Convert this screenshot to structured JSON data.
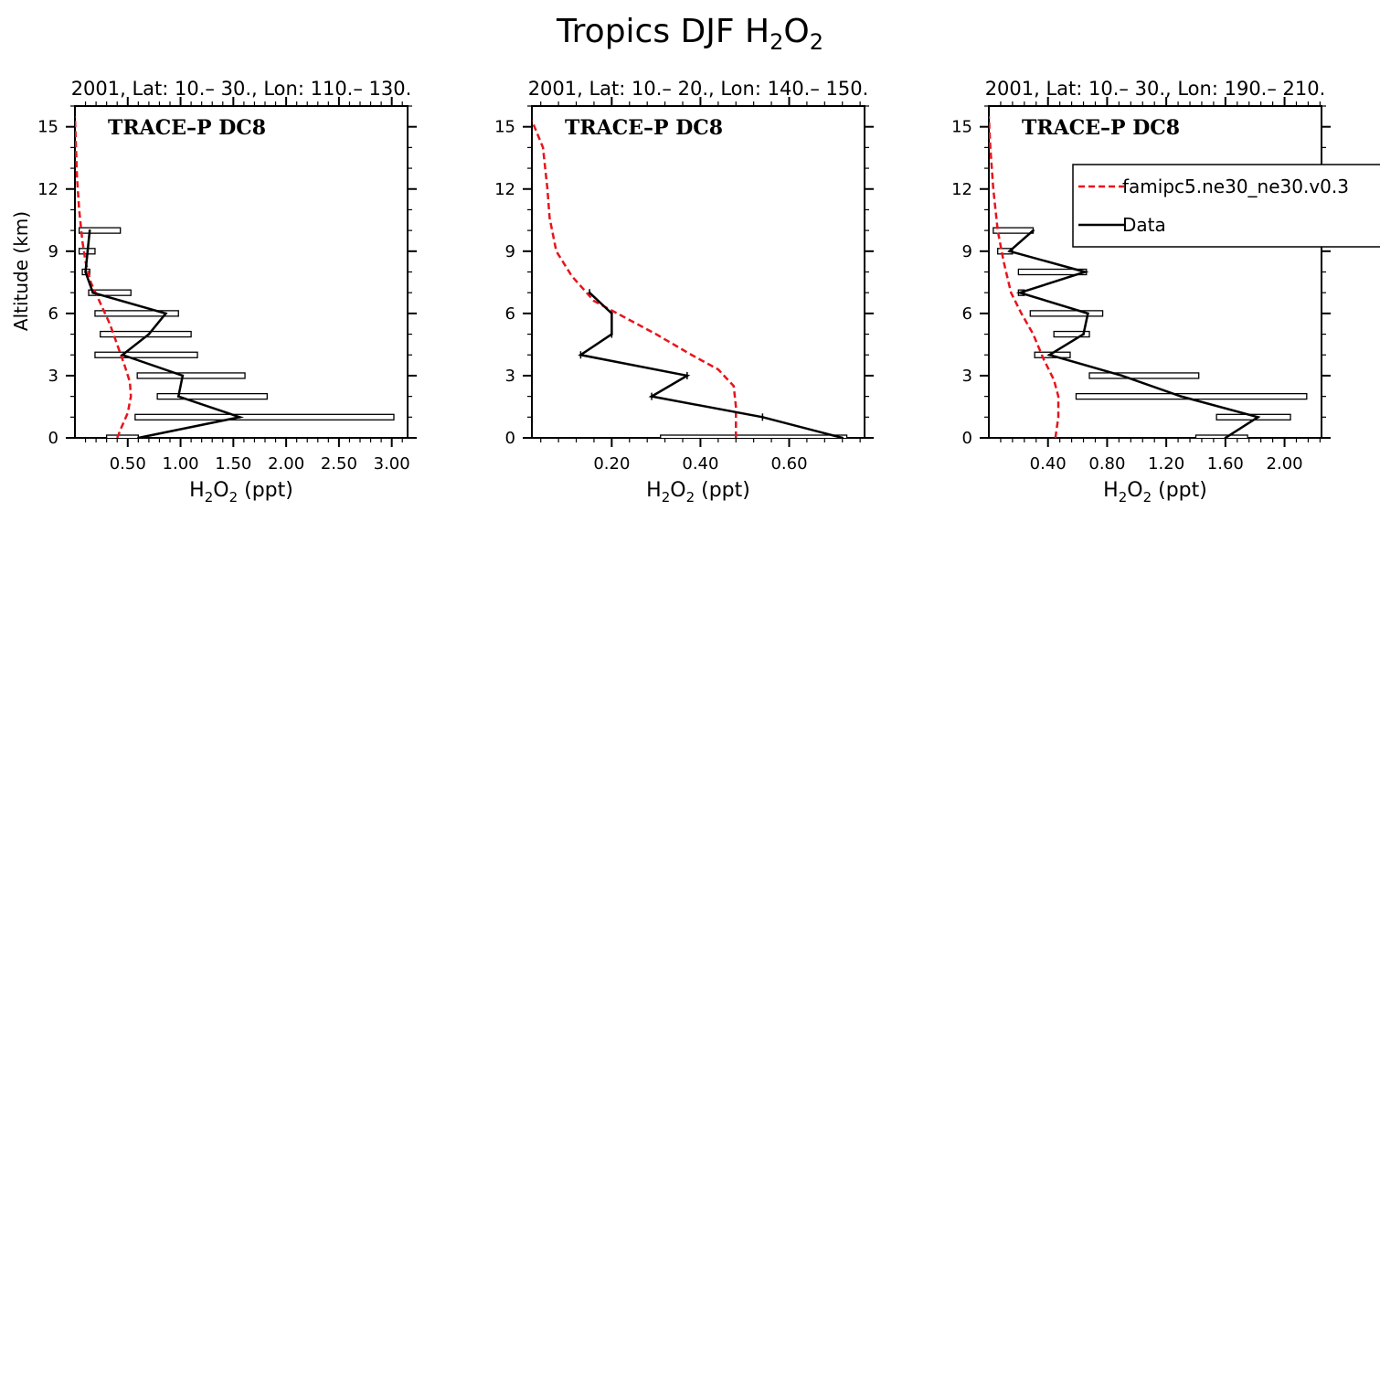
{
  "figure": {
    "title_main": "Tropics DJF H",
    "title_sub1": "2",
    "title_mid": "O",
    "title_sub2": "2"
  },
  "colors": {
    "model": "#e8141b",
    "data": "#000000",
    "axis": "#000000"
  },
  "legend": {
    "model_label": "famipc5.ne30_ne30.v0.3",
    "data_label": "Data",
    "placement": "top-right of third panel"
  },
  "chart_data": [
    {
      "type": "line",
      "panel_title": "2001, Lat: 10.– 30., Lon: 110.– 130.",
      "campaign_label": "TRACE–P DC8",
      "xlabel_main": "H",
      "xlabel_sub1": "2",
      "xlabel_mid": "O",
      "xlabel_sub2": "2",
      "xlabel_tail": " (ppt)",
      "ylabel": "Altitude (km)",
      "xlim": [
        0.0,
        3.15
      ],
      "ylim": [
        0,
        16
      ],
      "xticks": [
        0.5,
        1.0,
        1.5,
        2.0,
        2.5,
        3.0
      ],
      "xtick_labels": [
        "0.50",
        "1.00",
        "1.50",
        "2.00",
        "2.50",
        "3.00"
      ],
      "yticks": [
        0,
        3,
        6,
        9,
        12,
        15
      ],
      "ytick_labels": [
        "0",
        "3",
        "6",
        "9",
        "12",
        "15"
      ],
      "model": {
        "name": "famipc5.ne30_ne30.v0.3",
        "x": [
          0.4,
          0.44,
          0.5,
          0.53,
          0.52,
          0.47,
          0.4,
          0.33,
          0.24,
          0.15,
          0.1,
          0.07,
          0.04,
          0.02,
          0.01,
          0.0
        ],
        "y": [
          0,
          0.5,
          1.2,
          2.0,
          2.7,
          3.5,
          4.5,
          5.5,
          6.5,
          7.5,
          8.5,
          9.5,
          11.0,
          12.5,
          14.0,
          15.5
        ]
      },
      "data": {
        "name": "Data",
        "y": [
          0,
          1,
          2,
          3,
          4,
          5,
          6,
          7,
          8,
          9,
          10
        ],
        "x": [
          0.6,
          1.56,
          0.98,
          1.02,
          0.45,
          0.7,
          0.86,
          0.17,
          0.1,
          0.12,
          0.14
        ],
        "range_low": [
          0.3,
          0.57,
          0.78,
          0.59,
          0.19,
          0.24,
          0.19,
          0.13,
          0.07,
          0.04,
          0.04
        ],
        "range_high": [
          0.6,
          3.02,
          1.82,
          1.61,
          1.16,
          1.1,
          0.98,
          0.53,
          0.14,
          0.19,
          0.43
        ]
      }
    },
    {
      "type": "line",
      "panel_title": "2001, Lat: 10.– 20., Lon: 140.– 150.",
      "campaign_label": "TRACE–P DC8",
      "xlabel_main": "H",
      "xlabel_sub1": "2",
      "xlabel_mid": "O",
      "xlabel_sub2": "2",
      "xlabel_tail": " (ppt)",
      "ylabel": "",
      "xlim": [
        0.02,
        0.77
      ],
      "ylim": [
        0,
        16
      ],
      "xticks": [
        0.2,
        0.4,
        0.6
      ],
      "xtick_labels": [
        "0.20",
        "0.40",
        "0.60"
      ],
      "yticks": [
        0,
        3,
        6,
        9,
        12,
        15
      ],
      "ytick_labels": [
        "0",
        "3",
        "6",
        "9",
        "12",
        "15"
      ],
      "model": {
        "name": "famipc5.ne30_ne30.v0.3",
        "x": [
          0.48,
          0.48,
          0.475,
          0.44,
          0.38,
          0.3,
          0.16,
          0.11,
          0.075,
          0.06,
          0.055,
          0.045,
          0.02
        ],
        "y": [
          0,
          1.5,
          2.5,
          3.3,
          4.0,
          5.0,
          6.6,
          7.8,
          9.0,
          10.6,
          12.0,
          14.0,
          15.3
        ]
      },
      "data": {
        "name": "Data",
        "y": [
          0,
          1,
          2,
          3,
          4,
          5,
          6,
          7
        ],
        "x": [
          0.72,
          0.54,
          0.29,
          0.37,
          0.13,
          0.2,
          0.2,
          0.15
        ],
        "range_low": [
          0.31,
          0.54,
          0.29,
          0.37,
          0.13,
          0.2,
          0.2,
          0.15
        ],
        "range_high": [
          0.73,
          0.54,
          0.29,
          0.37,
          0.13,
          0.2,
          0.2,
          0.15
        ]
      }
    },
    {
      "type": "line",
      "panel_title": "2001, Lat: 10.– 30., Lon: 190.– 210.",
      "campaign_label": "TRACE–P DC8",
      "xlabel_main": "H",
      "xlabel_sub1": "2",
      "xlabel_mid": "O",
      "xlabel_sub2": "2",
      "xlabel_tail": " (ppt)",
      "ylabel": "",
      "xlim": [
        0.0,
        2.25
      ],
      "ylim": [
        0,
        16
      ],
      "xticks": [
        0.4,
        0.8,
        1.2,
        1.6,
        2.0
      ],
      "xtick_labels": [
        "0.40",
        "0.80",
        "1.20",
        "1.60",
        "2.00"
      ],
      "yticks": [
        0,
        3,
        6,
        9,
        12,
        15
      ],
      "ytick_labels": [
        "0",
        "3",
        "6",
        "9",
        "12",
        "15"
      ],
      "model": {
        "name": "famipc5.ne30_ne30.v0.3",
        "x": [
          0.45,
          0.47,
          0.47,
          0.44,
          0.37,
          0.3,
          0.22,
          0.15,
          0.1,
          0.06,
          0.03,
          0.01,
          0.0
        ],
        "y": [
          0,
          1.0,
          2.0,
          2.8,
          3.8,
          5.0,
          6.0,
          7.0,
          8.5,
          10.0,
          12.0,
          14.0,
          15.5
        ]
      },
      "data": {
        "name": "Data",
        "y": [
          0,
          1,
          2,
          3,
          4,
          5,
          6,
          7,
          8,
          9,
          10
        ],
        "x": [
          1.6,
          1.82,
          1.3,
          0.9,
          0.41,
          0.64,
          0.67,
          0.21,
          0.65,
          0.14,
          0.3
        ],
        "range_low": [
          1.4,
          1.54,
          0.59,
          0.68,
          0.31,
          0.44,
          0.28,
          0.2,
          0.2,
          0.06,
          0.03
        ],
        "range_high": [
          1.75,
          2.04,
          2.15,
          1.42,
          0.55,
          0.68,
          0.77,
          0.24,
          0.66,
          0.16,
          0.3
        ]
      }
    }
  ]
}
